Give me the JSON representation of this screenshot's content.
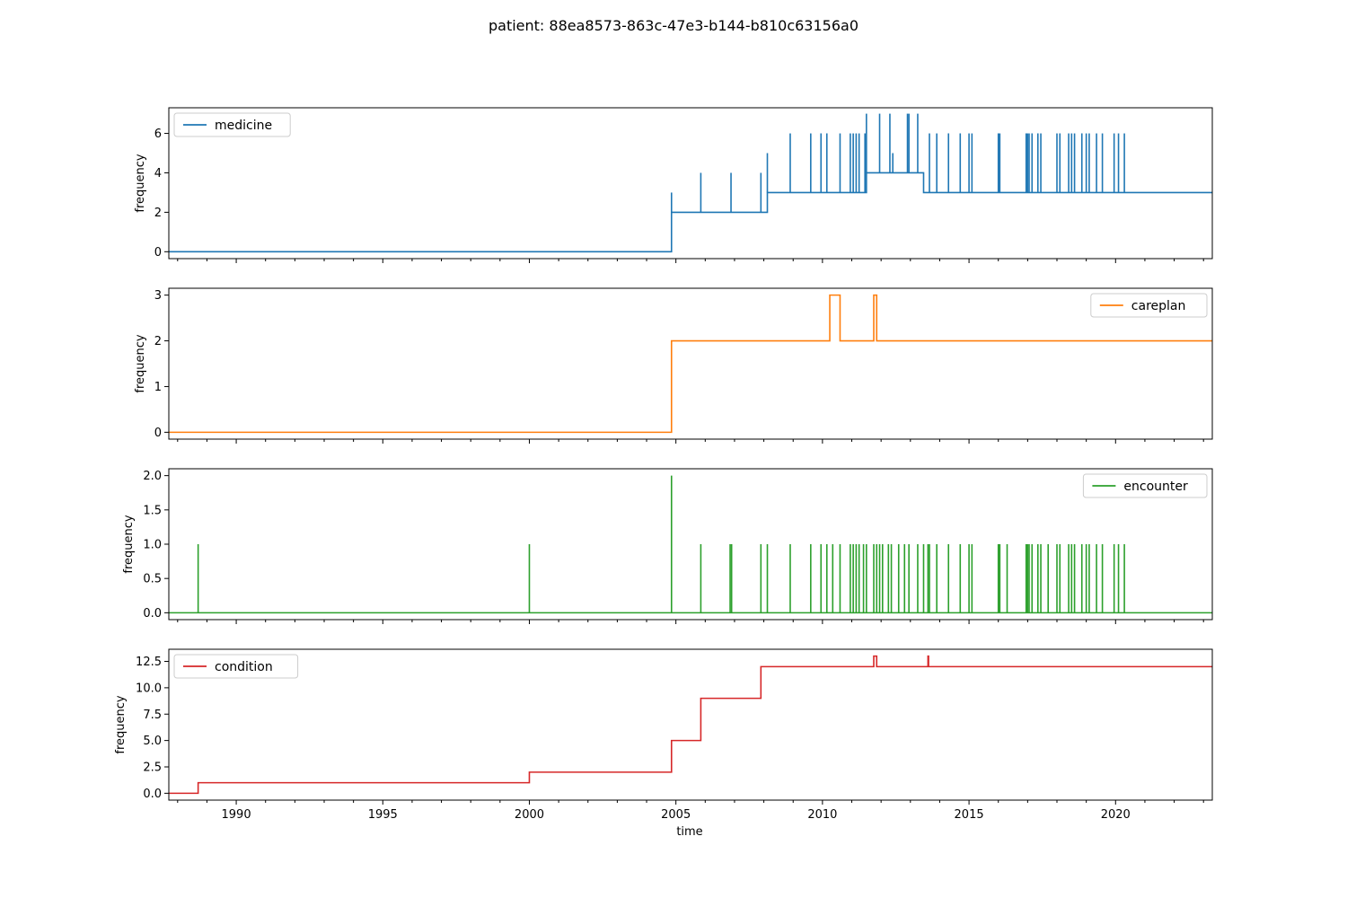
{
  "figure": {
    "title": "patient: 88ea8573-863c-47e3-b144-b810c63156a0",
    "xlabel": "time"
  },
  "chart_data": [
    {
      "type": "line",
      "name": "medicine",
      "color": "#1f77b4",
      "legend_position": "upper-left",
      "ylabel": "frequency",
      "xlim": [
        1987.7,
        2023.3
      ],
      "ylim": [
        -0.35,
        7.3
      ],
      "yticks": [
        0,
        2,
        4,
        6
      ],
      "ytick_labels": [
        "0",
        "2",
        "4",
        "6"
      ],
      "xticks": [
        1990,
        1995,
        2000,
        2005,
        2010,
        2015,
        2020
      ],
      "xtick_labels": [
        "1990",
        "1995",
        "2000",
        "2005",
        "2010",
        "2015",
        "2020"
      ],
      "show_xtick_labels": false,
      "steps": [
        [
          1987.7,
          0
        ],
        [
          2004.85,
          2
        ],
        [
          2008.12,
          3
        ],
        [
          2011.5,
          4
        ],
        [
          2013.45,
          3
        ]
      ],
      "spikes": [
        [
          2004.85,
          3
        ],
        [
          2005.85,
          4
        ],
        [
          2006.88,
          4
        ],
        [
          2007.9,
          4
        ],
        [
          2008.12,
          5
        ],
        [
          2008.9,
          6
        ],
        [
          2009.6,
          6
        ],
        [
          2009.95,
          6
        ],
        [
          2010.15,
          6
        ],
        [
          2010.6,
          6
        ],
        [
          2010.95,
          6
        ],
        [
          2011.05,
          6
        ],
        [
          2011.15,
          6
        ],
        [
          2011.25,
          6
        ],
        [
          2011.45,
          6
        ],
        [
          2011.5,
          7
        ],
        [
          2011.95,
          7
        ],
        [
          2012.3,
          7
        ],
        [
          2012.4,
          5
        ],
        [
          2012.9,
          7
        ],
        [
          2012.95,
          7
        ],
        [
          2013.25,
          7
        ],
        [
          2013.65,
          6
        ],
        [
          2013.9,
          6
        ],
        [
          2014.3,
          6
        ],
        [
          2014.7,
          6
        ],
        [
          2015.0,
          6
        ],
        [
          2015.1,
          6
        ],
        [
          2016.0,
          6
        ],
        [
          2016.05,
          6
        ],
        [
          2016.95,
          6
        ],
        [
          2017.0,
          6
        ],
        [
          2017.05,
          6
        ],
        [
          2017.15,
          6
        ],
        [
          2017.35,
          6
        ],
        [
          2017.45,
          6
        ],
        [
          2018.0,
          6
        ],
        [
          2018.1,
          6
        ],
        [
          2018.4,
          6
        ],
        [
          2018.5,
          6
        ],
        [
          2018.6,
          6
        ],
        [
          2018.85,
          6
        ],
        [
          2019.0,
          6
        ],
        [
          2019.1,
          6
        ],
        [
          2019.35,
          6
        ],
        [
          2019.55,
          6
        ],
        [
          2019.95,
          6
        ],
        [
          2020.1,
          6
        ],
        [
          2020.3,
          6
        ]
      ]
    },
    {
      "type": "line",
      "name": "careplan",
      "color": "#ff7f0e",
      "legend_position": "upper-right",
      "ylabel": "frequency",
      "xlim": [
        1987.7,
        2023.3
      ],
      "ylim": [
        -0.15,
        3.15
      ],
      "yticks": [
        0,
        1,
        2,
        3
      ],
      "ytick_labels": [
        "0",
        "1",
        "2",
        "3"
      ],
      "xticks": [
        1990,
        1995,
        2000,
        2005,
        2010,
        2015,
        2020
      ],
      "xtick_labels": [
        "1990",
        "1995",
        "2000",
        "2005",
        "2010",
        "2015",
        "2020"
      ],
      "show_xtick_labels": false,
      "steps": [
        [
          1987.7,
          0
        ],
        [
          2004.85,
          2
        ],
        [
          2010.25,
          3
        ],
        [
          2010.6,
          2
        ],
        [
          2011.75,
          3
        ],
        [
          2011.85,
          2
        ]
      ],
      "spikes": []
    },
    {
      "type": "line",
      "name": "encounter",
      "color": "#2ca02c",
      "legend_position": "upper-right",
      "ylabel": "frequency",
      "xlim": [
        1987.7,
        2023.3
      ],
      "ylim": [
        -0.1,
        2.1
      ],
      "yticks": [
        0,
        0.5,
        1,
        1.5,
        2
      ],
      "ytick_labels": [
        "0.0",
        "0.5",
        "1.0",
        "1.5",
        "2.0"
      ],
      "xticks": [
        1990,
        1995,
        2000,
        2005,
        2010,
        2015,
        2020
      ],
      "xtick_labels": [
        "1990",
        "1995",
        "2000",
        "2005",
        "2010",
        "2015",
        "2020"
      ],
      "show_xtick_labels": false,
      "steps": [
        [
          1987.7,
          0
        ]
      ],
      "spikes": [
        [
          1988.7,
          1
        ],
        [
          2000.0,
          1
        ],
        [
          2004.85,
          2
        ],
        [
          2005.85,
          1
        ],
        [
          2006.85,
          1
        ],
        [
          2006.9,
          1
        ],
        [
          2007.9,
          1
        ],
        [
          2008.12,
          1
        ],
        [
          2008.9,
          1
        ],
        [
          2009.6,
          1
        ],
        [
          2009.95,
          1
        ],
        [
          2010.15,
          1
        ],
        [
          2010.35,
          1
        ],
        [
          2010.6,
          1
        ],
        [
          2010.95,
          1
        ],
        [
          2011.05,
          1
        ],
        [
          2011.15,
          1
        ],
        [
          2011.25,
          1
        ],
        [
          2011.4,
          1
        ],
        [
          2011.5,
          1
        ],
        [
          2011.75,
          1
        ],
        [
          2011.85,
          1
        ],
        [
          2011.95,
          1
        ],
        [
          2012.05,
          1
        ],
        [
          2012.25,
          1
        ],
        [
          2012.35,
          1
        ],
        [
          2012.6,
          1
        ],
        [
          2012.8,
          1
        ],
        [
          2012.95,
          1
        ],
        [
          2013.25,
          1
        ],
        [
          2013.45,
          1
        ],
        [
          2013.6,
          1
        ],
        [
          2013.65,
          1
        ],
        [
          2013.9,
          1
        ],
        [
          2014.3,
          1
        ],
        [
          2014.7,
          1
        ],
        [
          2015.0,
          1
        ],
        [
          2015.1,
          1
        ],
        [
          2016.0,
          1
        ],
        [
          2016.05,
          1
        ],
        [
          2016.3,
          1
        ],
        [
          2016.95,
          1
        ],
        [
          2017.0,
          1
        ],
        [
          2017.05,
          1
        ],
        [
          2017.15,
          1
        ],
        [
          2017.35,
          1
        ],
        [
          2017.45,
          1
        ],
        [
          2017.7,
          1
        ],
        [
          2018.0,
          1
        ],
        [
          2018.1,
          1
        ],
        [
          2018.4,
          1
        ],
        [
          2018.5,
          1
        ],
        [
          2018.6,
          1
        ],
        [
          2018.85,
          1
        ],
        [
          2019.0,
          1
        ],
        [
          2019.1,
          1
        ],
        [
          2019.35,
          1
        ],
        [
          2019.55,
          1
        ],
        [
          2019.95,
          1
        ],
        [
          2020.1,
          1
        ],
        [
          2020.3,
          1
        ]
      ]
    },
    {
      "type": "line",
      "name": "condition",
      "color": "#d62728",
      "legend_position": "upper-left",
      "ylabel": "frequency",
      "xlim": [
        1987.7,
        2023.3
      ],
      "ylim": [
        -0.65,
        13.65
      ],
      "yticks": [
        0,
        2.5,
        5,
        7.5,
        10,
        12.5
      ],
      "ytick_labels": [
        "0.0",
        "2.5",
        "5.0",
        "7.5",
        "10.0",
        "12.5"
      ],
      "xticks": [
        1990,
        1995,
        2000,
        2005,
        2010,
        2015,
        2020
      ],
      "xtick_labels": [
        "1990",
        "1995",
        "2000",
        "2005",
        "2010",
        "2015",
        "2020"
      ],
      "show_xtick_labels": true,
      "steps": [
        [
          1987.7,
          0
        ],
        [
          1988.7,
          1
        ],
        [
          2000.0,
          2
        ],
        [
          2004.85,
          5
        ],
        [
          2005.85,
          9
        ],
        [
          2007.9,
          12
        ],
        [
          2011.75,
          13
        ],
        [
          2011.85,
          12
        ],
        [
          2013.6,
          13
        ],
        [
          2013.62,
          12
        ]
      ],
      "spikes": []
    }
  ]
}
